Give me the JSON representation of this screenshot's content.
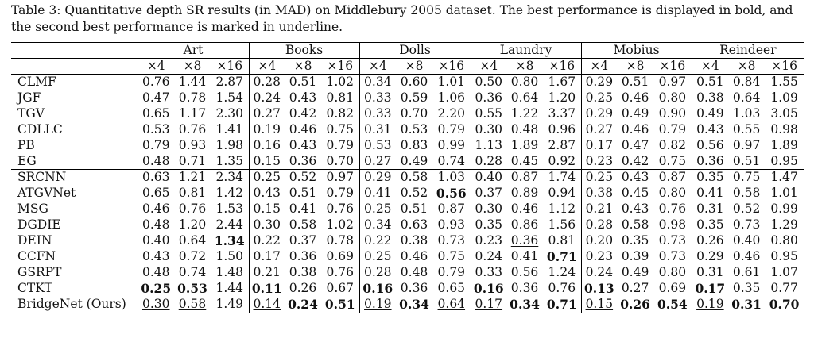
{
  "caption": "Table 3: Quantitative depth SR results (in MAD) on Middlebury 2005 dataset. The best performance is displayed in bold, and the second best performance is marked in underline.",
  "groups": [
    "Art",
    "Books",
    "Dolls",
    "Laundry",
    "Mobius",
    "Reindeer"
  ],
  "scales": [
    "×4",
    "×8",
    "×16"
  ],
  "rows": [
    {
      "method": "CLMF",
      "values": [
        "0.76",
        "1.44",
        "2.87",
        "0.28",
        "0.51",
        "1.02",
        "0.34",
        "0.60",
        "1.01",
        "0.50",
        "0.80",
        "1.67",
        "0.29",
        "0.51",
        "0.97",
        "0.51",
        "0.84",
        "1.55"
      ],
      "bold": [],
      "underline": []
    },
    {
      "method": "JGF",
      "values": [
        "0.47",
        "0.78",
        "1.54",
        "0.24",
        "0.43",
        "0.81",
        "0.33",
        "0.59",
        "1.06",
        "0.36",
        "0.64",
        "1.20",
        "0.25",
        "0.46",
        "0.80",
        "0.38",
        "0.64",
        "1.09"
      ],
      "bold": [],
      "underline": []
    },
    {
      "method": "TGV",
      "values": [
        "0.65",
        "1.17",
        "2.30",
        "0.27",
        "0.42",
        "0.82",
        "0.33",
        "0.70",
        "2.20",
        "0.55",
        "1.22",
        "3.37",
        "0.29",
        "0.49",
        "0.90",
        "0.49",
        "1.03",
        "3.05"
      ],
      "bold": [],
      "underline": []
    },
    {
      "method": "CDLLC",
      "values": [
        "0.53",
        "0.76",
        "1.41",
        "0.19",
        "0.46",
        "0.75",
        "0.31",
        "0.53",
        "0.79",
        "0.30",
        "0.48",
        "0.96",
        "0.27",
        "0.46",
        "0.79",
        "0.43",
        "0.55",
        "0.98"
      ],
      "bold": [],
      "underline": []
    },
    {
      "method": "PB",
      "values": [
        "0.79",
        "0.93",
        "1.98",
        "0.16",
        "0.43",
        "0.79",
        "0.53",
        "0.83",
        "0.99",
        "1.13",
        "1.89",
        "2.87",
        "0.17",
        "0.47",
        "0.82",
        "0.56",
        "0.97",
        "1.89"
      ],
      "bold": [],
      "underline": []
    },
    {
      "method": "EG",
      "values": [
        "0.48",
        "0.71",
        "1.35",
        "0.15",
        "0.36",
        "0.70",
        "0.27",
        "0.49",
        "0.74",
        "0.28",
        "0.45",
        "0.92",
        "0.23",
        "0.42",
        "0.75",
        "0.36",
        "0.51",
        "0.95"
      ],
      "bold": [],
      "underline": [
        2
      ]
    },
    {
      "method": "SRCNN",
      "values": [
        "0.63",
        "1.21",
        "2.34",
        "0.25",
        "0.52",
        "0.97",
        "0.29",
        "0.58",
        "1.03",
        "0.40",
        "0.87",
        "1.74",
        "0.25",
        "0.43",
        "0.87",
        "0.35",
        "0.75",
        "1.47"
      ],
      "bold": [],
      "underline": []
    },
    {
      "method": "ATGVNet",
      "values": [
        "0.65",
        "0.81",
        "1.42",
        "0.43",
        "0.51",
        "0.79",
        "0.41",
        "0.52",
        "0.56",
        "0.37",
        "0.89",
        "0.94",
        "0.38",
        "0.45",
        "0.80",
        "0.41",
        "0.58",
        "1.01"
      ],
      "bold": [
        8
      ],
      "underline": []
    },
    {
      "method": "MSG",
      "values": [
        "0.46",
        "0.76",
        "1.53",
        "0.15",
        "0.41",
        "0.76",
        "0.25",
        "0.51",
        "0.87",
        "0.30",
        "0.46",
        "1.12",
        "0.21",
        "0.43",
        "0.76",
        "0.31",
        "0.52",
        "0.99"
      ],
      "bold": [],
      "underline": []
    },
    {
      "method": "DGDIE",
      "values": [
        "0.48",
        "1.20",
        "2.44",
        "0.30",
        "0.58",
        "1.02",
        "0.34",
        "0.63",
        "0.93",
        "0.35",
        "0.86",
        "1.56",
        "0.28",
        "0.58",
        "0.98",
        "0.35",
        "0.73",
        "1.29"
      ],
      "bold": [],
      "underline": []
    },
    {
      "method": "DEIN",
      "values": [
        "0.40",
        "0.64",
        "1.34",
        "0.22",
        "0.37",
        "0.78",
        "0.22",
        "0.38",
        "0.73",
        "0.23",
        "0.36",
        "0.81",
        "0.20",
        "0.35",
        "0.73",
        "0.26",
        "0.40",
        "0.80"
      ],
      "bold": [
        2
      ],
      "underline": [
        10
      ]
    },
    {
      "method": "CCFN",
      "values": [
        "0.43",
        "0.72",
        "1.50",
        "0.17",
        "0.36",
        "0.69",
        "0.25",
        "0.46",
        "0.75",
        "0.24",
        "0.41",
        "0.71",
        "0.23",
        "0.39",
        "0.73",
        "0.29",
        "0.46",
        "0.95"
      ],
      "bold": [
        11
      ],
      "underline": []
    },
    {
      "method": "GSRPT",
      "values": [
        "0.48",
        "0.74",
        "1.48",
        "0.21",
        "0.38",
        "0.76",
        "0.28",
        "0.48",
        "0.79",
        "0.33",
        "0.56",
        "1.24",
        "0.24",
        "0.49",
        "0.80",
        "0.31",
        "0.61",
        "1.07"
      ],
      "bold": [],
      "underline": []
    },
    {
      "method": "CTKT",
      "values": [
        "0.25",
        "0.53",
        "1.44",
        "0.11",
        "0.26",
        "0.67",
        "0.16",
        "0.36",
        "0.65",
        "0.16",
        "0.36",
        "0.76",
        "0.13",
        "0.27",
        "0.69",
        "0.17",
        "0.35",
        "0.77"
      ],
      "bold": [
        0,
        1,
        3,
        6,
        9,
        12,
        15
      ],
      "underline": [
        4,
        5,
        7,
        10,
        11,
        13,
        14,
        16,
        17
      ]
    },
    {
      "method": "BridgeNet (Ours)",
      "values": [
        "0.30",
        "0.58",
        "1.49",
        "0.14",
        "0.24",
        "0.51",
        "0.19",
        "0.34",
        "0.64",
        "0.17",
        "0.34",
        "0.71",
        "0.15",
        "0.26",
        "0.54",
        "0.19",
        "0.31",
        "0.70"
      ],
      "bold": [
        4,
        5,
        7,
        10,
        11,
        13,
        14,
        16,
        17
      ],
      "underline": [
        0,
        1,
        3,
        6,
        8,
        9,
        12,
        15
      ]
    }
  ]
}
